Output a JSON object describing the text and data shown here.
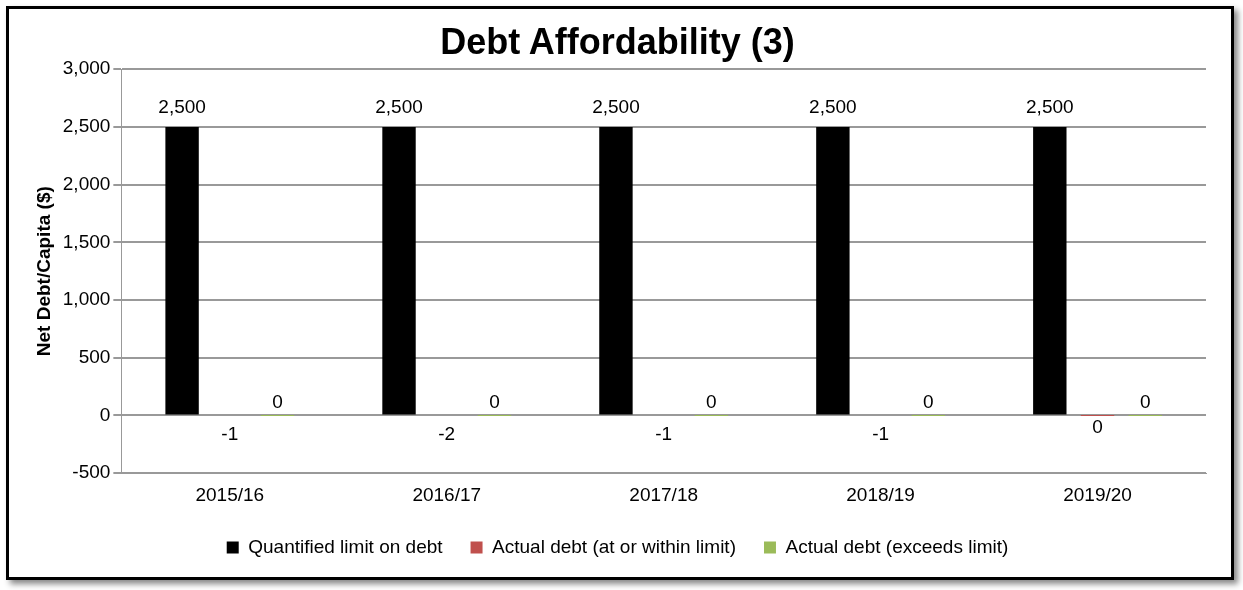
{
  "chart_data": {
    "type": "bar",
    "title": "Debt Affordability (3)",
    "ylabel": "Net Debt/Capita ($)",
    "categories": [
      "2015/16",
      "2016/17",
      "2017/18",
      "2018/19",
      "2019/20"
    ],
    "series": [
      {
        "name": "Quantified limit on debt",
        "color": "#000000",
        "values": [
          2500,
          2500,
          2500,
          2500,
          2500
        ],
        "value_labels": [
          "2,500",
          "2,500",
          "2,500",
          "2,500",
          "2,500"
        ]
      },
      {
        "name": "Actual debt (at or within limit)",
        "color": "#c0504d",
        "values": [
          -1,
          -2,
          -1,
          -1,
          0
        ],
        "value_labels": [
          "-1",
          "-2",
          "-1",
          "-1",
          "0"
        ]
      },
      {
        "name": "Actual debt (exceeds limit)",
        "color": "#9bbb59",
        "values": [
          0,
          0,
          0,
          0,
          0
        ],
        "value_labels": [
          "0",
          "0",
          "0",
          "0",
          "0"
        ]
      }
    ],
    "ylim": [
      -500,
      3000
    ],
    "yticks": [
      {
        "value": -500,
        "label": "-500"
      },
      {
        "value": 0,
        "label": "0"
      },
      {
        "value": 500,
        "label": "500"
      },
      {
        "value": 1000,
        "label": "1,000"
      },
      {
        "value": 1500,
        "label": "1,500"
      },
      {
        "value": 2000,
        "label": "2,000"
      },
      {
        "value": 2500,
        "label": "2,500"
      },
      {
        "value": 3000,
        "label": "3,000"
      }
    ],
    "grid": "y",
    "legend": "bottom"
  }
}
